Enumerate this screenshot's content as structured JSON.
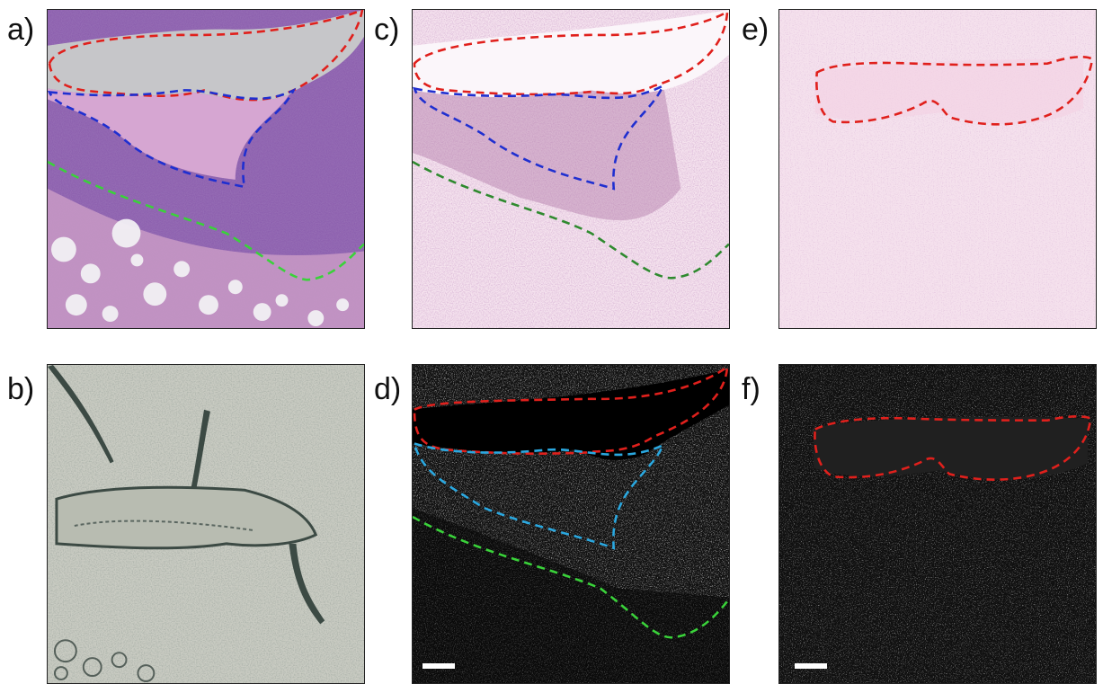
{
  "labels": {
    "a": "a)",
    "b": "b)",
    "c": "c)",
    "d": "d)",
    "e": "e)",
    "f": "f)"
  },
  "panels": {
    "a": {
      "content": "H&E stained tissue section with red, blue and green dashed region outlines"
    },
    "b": {
      "content": "grayscale-green unstained tissue image"
    },
    "c": {
      "content": "pale pink stained tissue with red, blue and green dashed region outlines"
    },
    "d": {
      "content": "black and white processed image with red, cyan and green dashed outlines and scale bar"
    },
    "e": {
      "content": "pale pink stained tissue with red dashed region outline"
    },
    "f": {
      "content": "black and white processed image with red dashed outline and scale bar"
    }
  },
  "colors": {
    "outline_red": "#e0201c",
    "outline_blue": "#1f2fd0",
    "outline_cyan": "#2aa8e0",
    "outline_green": "#3ad23a",
    "outline_darkgreen": "#2f8a2f",
    "he_purple": "#8a5aa8",
    "he_pink": "#d9a9cc",
    "lumen_gray": "#c9c9cc",
    "pale_pink": "#f3dbe9",
    "bw_dark": "#111111"
  }
}
